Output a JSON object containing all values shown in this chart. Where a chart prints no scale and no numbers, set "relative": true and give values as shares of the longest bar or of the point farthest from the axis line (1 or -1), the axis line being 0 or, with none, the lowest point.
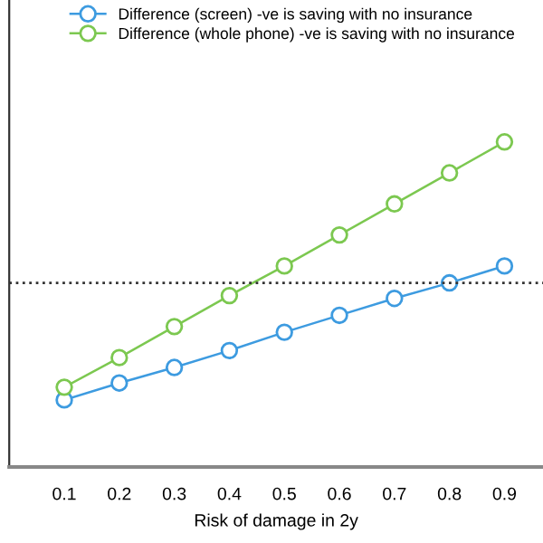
{
  "chart_data": {
    "type": "line",
    "relative": true,
    "xlabel": "Risk of damage in 2y",
    "x": [
      0.1,
      0.2,
      0.3,
      0.4,
      0.5,
      0.6,
      0.7,
      0.8,
      0.9
    ],
    "xlim": [
      0.0,
      0.97
    ],
    "xticks": [
      0.1,
      0.2,
      0.3,
      0.4,
      0.5,
      0.6,
      0.7,
      0.8,
      0.9
    ],
    "series": [
      {
        "name": "Difference (screen) -ve is saving with no insurance",
        "color": "#3d9be0",
        "values": [
          -0.83,
          -0.71,
          -0.6,
          -0.48,
          -0.35,
          -0.23,
          -0.11,
          0.0,
          0.12
        ]
      },
      {
        "name": "Difference (whole phone) -ve is saving with no insurance",
        "color": "#7cc850",
        "values": [
          -0.74,
          -0.53,
          -0.31,
          -0.09,
          0.12,
          0.34,
          0.56,
          0.78,
          1.0
        ]
      }
    ],
    "ref_lines": [
      {
        "axis": "y",
        "value": 0,
        "color": "#333333",
        "line_style": "dotted"
      }
    ],
    "marker": "circle",
    "line_style": "solid",
    "legend": "top left",
    "grid": false
  }
}
